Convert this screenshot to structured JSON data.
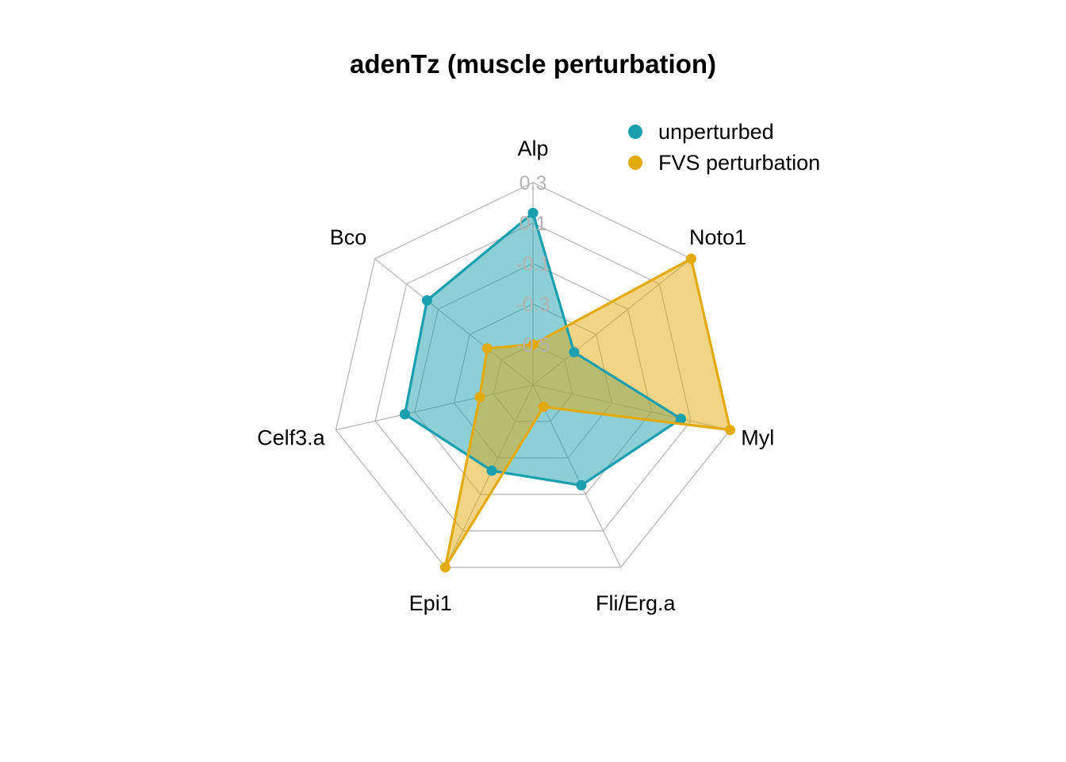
{
  "chart_data": {
    "type": "radar",
    "title": "adenTz (muscle perturbation)",
    "categories": [
      "Alp",
      "Noto1",
      "Myl",
      "Fli/Erg.a",
      "Epi1",
      "Celf3.a",
      "Bco"
    ],
    "ticks": [
      "0.3",
      "0.1",
      "-0.1",
      "-0.3",
      "-0.5"
    ],
    "rlim": [
      -0.7,
      0.3
    ],
    "grid": true,
    "legend_position": "top-right",
    "series": [
      {
        "name": "unperturbed",
        "color": "#1a9fae",
        "fill": "#8bd0d6",
        "values": [
          0.15,
          -0.44,
          0.05,
          -0.15,
          -0.23,
          -0.05,
          -0.03
        ]
      },
      {
        "name": "FVS perturbation",
        "color": "#e3aa0b",
        "fill": "#efd37d",
        "values": [
          -0.5,
          0.3,
          0.3,
          -0.58,
          0.3,
          -0.43,
          -0.41
        ]
      }
    ]
  }
}
